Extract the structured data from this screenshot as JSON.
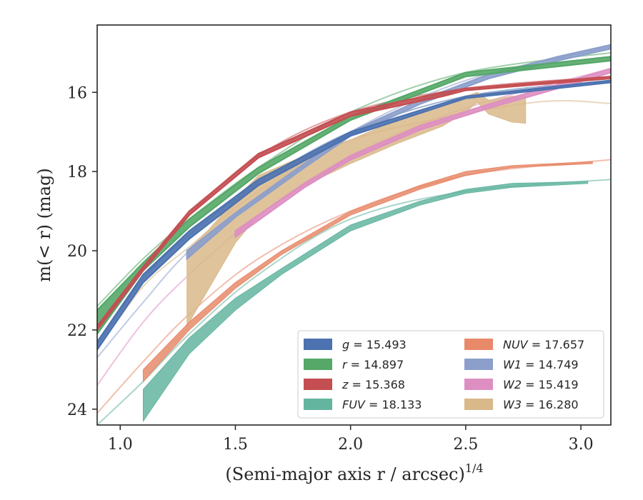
{
  "chart_data": {
    "type": "line",
    "xlabel": "(Semi-major axis r / arcsec)",
    "xlabel_superscript": "1/4",
    "ylabel": "m(< r) (mag)",
    "xlim": [
      0.9,
      3.13
    ],
    "ylim": [
      24.4,
      14.3
    ],
    "y_inverted": true,
    "grid": false,
    "legend_position": "lower-right",
    "x_ticks": [
      {
        "value": 1.0,
        "label": "1.0"
      },
      {
        "value": 1.5,
        "label": "1.5"
      },
      {
        "value": 2.0,
        "label": "2.0"
      },
      {
        "value": 2.5,
        "label": "2.5"
      },
      {
        "value": 3.0,
        "label": "3.0"
      }
    ],
    "y_ticks": [
      {
        "value": 16,
        "label": "16"
      },
      {
        "value": 18,
        "label": "18"
      },
      {
        "value": 20,
        "label": "20"
      },
      {
        "value": 22,
        "label": "22"
      },
      {
        "value": 24,
        "label": "24"
      }
    ],
    "series": [
      {
        "band": "g",
        "value": "15.493",
        "color": "#4c72b0",
        "extrap": {
          "x": [
            0.9,
            1.1,
            1.3,
            1.6,
            2.0,
            2.5,
            3.13
          ],
          "y": [
            22.4,
            20.7,
            19.6,
            18.3,
            17.0,
            16.1,
            15.7
          ]
        },
        "band_lo": {
          "x": [
            0.9,
            1.1,
            1.3,
            1.6,
            2.0,
            2.5,
            3.13
          ],
          "y": [
            22.3,
            20.6,
            19.5,
            18.2,
            17.0,
            16.1,
            15.7
          ]
        },
        "band_hi": {
          "x": [
            0.9,
            1.1,
            1.3,
            1.6,
            2.0,
            2.5,
            3.13
          ],
          "y": [
            22.5,
            20.8,
            19.7,
            18.35,
            17.1,
            16.15,
            15.75
          ]
        }
      },
      {
        "band": "r",
        "value": "14.897",
        "color": "#55a868",
        "extrap": {
          "x": [
            0.9,
            1.1,
            1.3,
            1.6,
            2.0,
            2.5,
            3.13
          ],
          "y": [
            21.4,
            20.2,
            19.2,
            17.9,
            16.5,
            15.5,
            15.0
          ]
        },
        "band_lo": {
          "x": [
            0.9,
            1.1,
            1.3,
            1.6,
            2.0,
            2.5,
            3.13
          ],
          "y": [
            21.5,
            20.3,
            19.2,
            17.9,
            16.6,
            15.5,
            15.1
          ]
        },
        "band_hi": {
          "x": [
            0.9,
            1.1,
            1.3,
            1.6,
            2.0,
            2.5,
            3.13
          ],
          "y": [
            22.1,
            20.5,
            19.4,
            18.05,
            16.7,
            15.6,
            15.2
          ]
        }
      },
      {
        "band": "z",
        "value": "15.368",
        "color": "#c44e52",
        "extrap": {
          "x": [
            0.9,
            1.1,
            1.3,
            1.6,
            2.0,
            2.5,
            3.13
          ],
          "y": [
            21.9,
            20.4,
            19.1,
            17.6,
            16.5,
            15.9,
            15.6
          ]
        },
        "band_lo": {
          "x": [
            0.9,
            1.1,
            1.3,
            1.6,
            2.0,
            2.4,
            2.5,
            3.13
          ],
          "y": [
            21.9,
            20.4,
            19.0,
            17.55,
            16.5,
            16.0,
            15.9,
            15.6
          ]
        },
        "band_hi": {
          "x": [
            0.9,
            1.1,
            1.3,
            1.6,
            2.0,
            2.4,
            2.5,
            3.13
          ],
          "y": [
            22.0,
            20.5,
            19.1,
            17.65,
            16.6,
            16.1,
            15.95,
            15.65
          ]
        }
      },
      {
        "band": "FUV",
        "value": "18.133",
        "color": "#64b5a0",
        "extrap": {
          "x": [
            0.9,
            1.1,
            1.3,
            1.6,
            2.0,
            2.5,
            3.13
          ],
          "y": [
            24.4,
            23.3,
            22.1,
            20.6,
            19.2,
            18.5,
            18.2
          ]
        },
        "band_lo": {
          "x": [
            1.1,
            1.3,
            1.5,
            1.7,
            2.0,
            2.3,
            2.5,
            2.7,
            3.03
          ],
          "y": [
            23.5,
            22.2,
            21.2,
            20.45,
            19.35,
            18.75,
            18.45,
            18.3,
            18.25
          ]
        },
        "band_hi": {
          "x": [
            1.1,
            1.3,
            1.5,
            1.7,
            2.0,
            2.3,
            2.5,
            2.7,
            3.03
          ],
          "y": [
            24.3,
            22.6,
            21.5,
            20.6,
            19.5,
            18.85,
            18.55,
            18.4,
            18.3
          ]
        }
      },
      {
        "band": "NUV",
        "value": "17.657",
        "color": "#e8896a",
        "extrap": {
          "x": [
            0.9,
            1.1,
            1.3,
            1.6,
            2.0,
            2.5,
            3.13
          ],
          "y": [
            24.1,
            22.8,
            21.6,
            20.2,
            19.0,
            18.1,
            17.7
          ]
        },
        "band_lo": {
          "x": [
            1.1,
            1.3,
            1.5,
            1.7,
            2.0,
            2.3,
            2.5,
            2.7,
            3.05
          ],
          "y": [
            23.0,
            21.8,
            20.8,
            20.0,
            19.0,
            18.35,
            18.0,
            17.85,
            17.75
          ]
        },
        "band_hi": {
          "x": [
            1.1,
            1.3,
            1.5,
            1.7,
            2.0,
            2.3,
            2.5,
            2.7,
            3.05
          ],
          "y": [
            23.3,
            22.0,
            20.95,
            20.1,
            19.1,
            18.45,
            18.1,
            17.9,
            17.8
          ]
        }
      },
      {
        "band": "W1",
        "value": "14.749",
        "color": "#8c9fcb",
        "extrap": {
          "x": [
            0.9,
            1.1,
            1.3,
            1.6,
            2.0,
            2.5,
            3.13
          ],
          "y": [
            22.7,
            21.3,
            20.0,
            18.6,
            17.0,
            15.7,
            14.85
          ]
        },
        "band_lo": {
          "x": [
            1.29,
            1.5,
            1.8,
            2.0,
            2.3,
            2.6,
            2.9,
            3.13
          ],
          "y": [
            20.0,
            19.05,
            17.8,
            17.0,
            16.2,
            15.55,
            15.1,
            14.8
          ]
        },
        "band_hi": {
          "x": [
            1.29,
            1.5,
            1.8,
            2.0,
            2.3,
            2.6,
            2.9,
            3.13
          ],
          "y": [
            20.2,
            19.15,
            17.9,
            17.1,
            16.3,
            15.65,
            15.2,
            14.9
          ]
        }
      },
      {
        "band": "W2",
        "value": "15.419",
        "color": "#de8fc2",
        "extrap": {
          "x": [
            0.9,
            1.1,
            1.3,
            1.6,
            2.0,
            2.5,
            3.13
          ],
          "y": [
            23.4,
            21.8,
            20.6,
            19.1,
            17.6,
            16.4,
            15.4
          ]
        },
        "band_lo": {
          "x": [
            1.5,
            1.8,
            2.0,
            2.3,
            2.6,
            2.9,
            3.13
          ],
          "y": [
            19.5,
            18.3,
            17.6,
            16.85,
            16.3,
            15.8,
            15.4
          ]
        },
        "band_hi": {
          "x": [
            1.5,
            1.8,
            2.0,
            2.3,
            2.6,
            2.9,
            3.13
          ],
          "y": [
            19.65,
            18.4,
            17.7,
            16.95,
            16.4,
            15.9,
            15.5
          ]
        }
      },
      {
        "band": "W3",
        "value": "16.280",
        "color": "#d9b88a",
        "extrap": {
          "x": [
            0.9,
            1.1,
            1.3,
            1.6,
            2.0,
            2.76,
            3.13
          ],
          "y": [
            22.5,
            20.9,
            19.9,
            18.5,
            17.2,
            16.28,
            16.28
          ]
        },
        "band_lo": {
          "x": [
            1.29,
            1.38,
            1.5,
            1.6,
            1.8,
            2.0,
            2.2,
            2.4,
            2.5,
            2.55,
            2.6,
            2.7,
            2.76
          ],
          "y": [
            21.9,
            21.0,
            19.8,
            19.1,
            18.35,
            17.8,
            17.3,
            16.85,
            16.5,
            16.25,
            16.55,
            16.75,
            16.78
          ]
        },
        "band_hi": {
          "x": [
            1.29,
            1.38,
            1.5,
            1.6,
            1.8,
            2.0,
            2.2,
            2.4,
            2.5,
            2.55,
            2.6,
            2.7,
            2.76
          ],
          "y": [
            20.0,
            19.5,
            18.7,
            18.1,
            17.6,
            17.2,
            16.7,
            16.35,
            16.1,
            16.0,
            16.2,
            16.1,
            16.1
          ]
        }
      }
    ]
  },
  "legend": [
    {
      "band": "g",
      "value": "15.493",
      "italic_band": false,
      "color": "#4c72b0"
    },
    {
      "band": "r",
      "value": "14.897",
      "italic_band": false,
      "color": "#55a868"
    },
    {
      "band": "z",
      "value": "15.368",
      "italic_band": false,
      "color": "#c44e52"
    },
    {
      "band": "FUV",
      "value": "18.133",
      "italic_band": true,
      "color": "#64b5a0"
    },
    {
      "band": "NUV",
      "value": "17.657",
      "italic_band": true,
      "color": "#e8896a"
    },
    {
      "band": "W1",
      "value": "14.749",
      "italic_band": true,
      "color": "#8c9fcb"
    },
    {
      "band": "W2",
      "value": "15.419",
      "italic_band": true,
      "color": "#de8fc2"
    },
    {
      "band": "W3",
      "value": "16.280",
      "italic_band": true,
      "color": "#d9b88a"
    }
  ]
}
